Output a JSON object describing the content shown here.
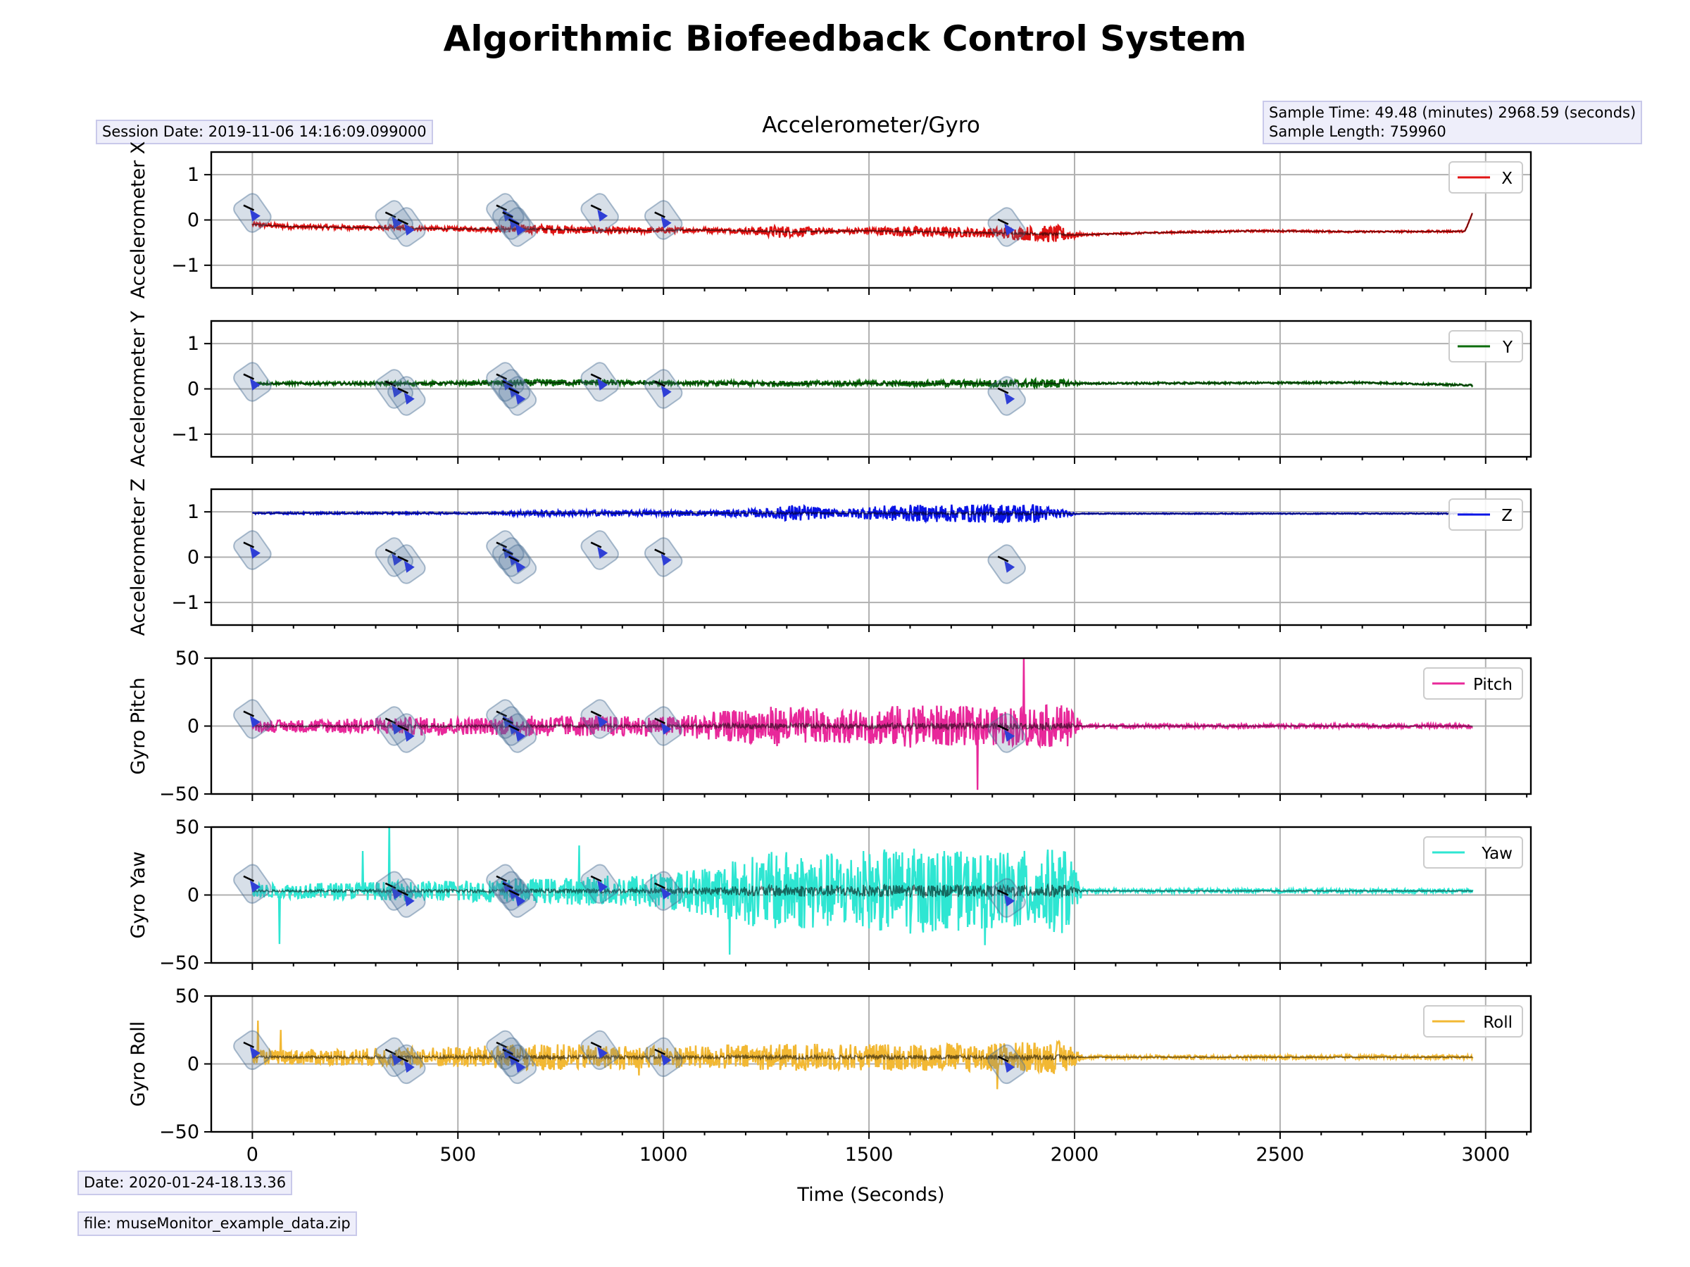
{
  "figure": {
    "title": "Algorithmic Biofeedback Control System",
    "subtitle": "Accelerometer/Gyro",
    "session_date": "Session Date: 2019-11-06 14:16:09.099000",
    "sample_time": "Sample Time: 49.48 (minutes) 2968.59 (seconds)",
    "sample_length": "Sample Length: 759960",
    "date": "Date: 2020-01-24-18.13.36",
    "file": "file: museMonitor_example_data.zip",
    "colors": {
      "grid": "#b0b0b0",
      "marker_box": "#4a6f95",
      "marker_arrow": "#2f3fd6"
    }
  },
  "chart_data": {
    "type": "line",
    "x_label": "Time (Seconds)",
    "x_ticks": [
      0,
      500,
      1000,
      1500,
      2000,
      2500,
      3000
    ],
    "x_minor_step": 100,
    "xlim": [
      -100,
      3110
    ],
    "grid": true,
    "session_end": 2968.59,
    "event_markers": [
      0,
      345,
      375,
      615,
      630,
      645,
      845,
      1000,
      1835
    ],
    "panels": [
      {
        "name": "accelerometer-x",
        "ylabel": "Accelerometer X",
        "legend": "X",
        "color": "#e01414",
        "ylim": [
          -1.5,
          1.5
        ],
        "yticks": [
          -1,
          0,
          1
        ],
        "ytick_labels": [
          "−1",
          "0",
          "1"
        ],
        "points": [
          [
            0,
            -0.1
          ],
          [
            100,
            -0.15
          ],
          [
            300,
            -0.17
          ],
          [
            500,
            -0.2
          ],
          [
            700,
            -0.2
          ],
          [
            900,
            -0.24
          ],
          [
            1100,
            -0.22
          ],
          [
            1300,
            -0.26
          ],
          [
            1500,
            -0.24
          ],
          [
            1700,
            -0.27
          ],
          [
            1900,
            -0.3
          ],
          [
            2000,
            -0.33
          ],
          [
            2200,
            -0.28
          ],
          [
            2450,
            -0.24
          ],
          [
            2700,
            -0.26
          ],
          [
            2950,
            -0.25
          ],
          [
            2968,
            0.15
          ]
        ],
        "noise": [
          [
            0,
            0.05
          ],
          [
            560,
            0.05
          ],
          [
            700,
            0.1
          ],
          [
            1000,
            0.06
          ],
          [
            1180,
            0.05
          ],
          [
            1280,
            0.14
          ],
          [
            1420,
            0.05
          ],
          [
            1600,
            0.12
          ],
          [
            1780,
            0.1
          ],
          [
            1960,
            0.2
          ],
          [
            2020,
            0.02
          ],
          [
            3000,
            0.02
          ]
        ]
      },
      {
        "name": "accelerometer-y",
        "ylabel": "Accelerometer Y",
        "legend": "Y",
        "color": "#0b6b0b",
        "ylim": [
          -1.5,
          1.5
        ],
        "yticks": [
          -1,
          0,
          1
        ],
        "ytick_labels": [
          "−1",
          "0",
          "1"
        ],
        "points": [
          [
            0,
            0.12
          ],
          [
            400,
            0.12
          ],
          [
            800,
            0.14
          ],
          [
            1200,
            0.12
          ],
          [
            1600,
            0.12
          ],
          [
            2000,
            0.12
          ],
          [
            2400,
            0.13
          ],
          [
            2700,
            0.14
          ],
          [
            2968,
            0.08
          ]
        ],
        "noise": [
          [
            0,
            0.03
          ],
          [
            500,
            0.04
          ],
          [
            700,
            0.08
          ],
          [
            1000,
            0.04
          ],
          [
            1300,
            0.06
          ],
          [
            1600,
            0.06
          ],
          [
            1960,
            0.1
          ],
          [
            2020,
            0.02
          ],
          [
            3000,
            0.02
          ]
        ]
      },
      {
        "name": "accelerometer-z",
        "ylabel": "Accelerometer Z",
        "legend": "Z",
        "color": "#0a14e6",
        "ylim": [
          -1.5,
          1.5
        ],
        "yticks": [
          -1,
          0,
          1
        ],
        "ytick_labels": [
          "−1",
          "0",
          "1"
        ],
        "points": [
          [
            0,
            0.97
          ],
          [
            500,
            0.97
          ],
          [
            1000,
            0.97
          ],
          [
            1500,
            0.97
          ],
          [
            2000,
            0.96
          ],
          [
            2500,
            0.96
          ],
          [
            2968,
            0.96
          ]
        ],
        "noise": [
          [
            0,
            0.02
          ],
          [
            600,
            0.02
          ],
          [
            650,
            0.06
          ],
          [
            1100,
            0.06
          ],
          [
            1250,
            0.1
          ],
          [
            1320,
            0.2
          ],
          [
            1420,
            0.08
          ],
          [
            1550,
            0.18
          ],
          [
            1900,
            0.22
          ],
          [
            2010,
            0.01
          ],
          [
            3000,
            0.01
          ]
        ]
      },
      {
        "name": "gyro-pitch",
        "ylabel": "Gyro Pitch",
        "legend": "Pitch",
        "color": "#e8289a",
        "ylim": [
          -50,
          50
        ],
        "yticks": [
          -50,
          0,
          50
        ],
        "ytick_labels": [
          "−50",
          "0",
          "50"
        ],
        "points": [
          [
            0,
            0
          ],
          [
            3000,
            0
          ]
        ],
        "noise": [
          [
            0,
            4
          ],
          [
            450,
            7
          ],
          [
            560,
            6
          ],
          [
            700,
            8
          ],
          [
            1000,
            7
          ],
          [
            1280,
            15
          ],
          [
            1420,
            12
          ],
          [
            1600,
            16
          ],
          [
            1780,
            14
          ],
          [
            1980,
            16
          ],
          [
            2020,
            1.5
          ],
          [
            3000,
            1.5
          ]
        ]
      },
      {
        "name": "gyro-yaw",
        "ylabel": "Gyro Yaw",
        "legend": "Yaw",
        "color": "#2ee6d2",
        "ylim": [
          -50,
          50
        ],
        "yticks": [
          -50,
          0,
          50
        ],
        "ytick_labels": [
          "−50",
          "0",
          "50"
        ],
        "points": [
          [
            0,
            3
          ],
          [
            3000,
            3
          ]
        ],
        "noise": [
          [
            0,
            5
          ],
          [
            500,
            8
          ],
          [
            700,
            9
          ],
          [
            900,
            12
          ],
          [
            1050,
            15
          ],
          [
            1280,
            30
          ],
          [
            1420,
            28
          ],
          [
            1600,
            32
          ],
          [
            1780,
            28
          ],
          [
            1980,
            32
          ],
          [
            2020,
            1.5
          ],
          [
            3000,
            1.5
          ]
        ]
      },
      {
        "name": "gyro-roll",
        "ylabel": "Gyro Roll",
        "legend": "Roll",
        "color": "#f2b833",
        "ylim": [
          -50,
          50
        ],
        "yticks": [
          -50,
          0,
          50
        ],
        "ytick_labels": [
          "−50",
          "0",
          "50"
        ],
        "points": [
          [
            0,
            5
          ],
          [
            3000,
            5
          ]
        ],
        "noise": [
          [
            0,
            5
          ],
          [
            500,
            8
          ],
          [
            700,
            10
          ],
          [
            1000,
            8
          ],
          [
            1280,
            10
          ],
          [
            1600,
            10
          ],
          [
            1980,
            12
          ],
          [
            2020,
            1.5
          ],
          [
            3000,
            1.5
          ]
        ]
      }
    ]
  }
}
